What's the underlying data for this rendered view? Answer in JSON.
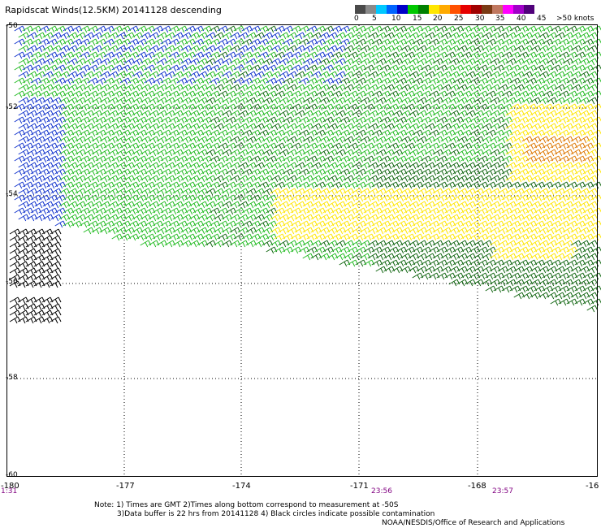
{
  "title": "Rapidscat Winds(12.5KM) 20141128 descending",
  "legend": {
    "colors": [
      "#4a4a4a",
      "#8a8a8a",
      "#00c8ff",
      "#0064ff",
      "#0000c8",
      "#00c800",
      "#008000",
      "#ffe600",
      "#ffaa00",
      "#ff5000",
      "#e60000",
      "#a00000",
      "#7a3a14",
      "#c07860",
      "#ff00ff",
      "#a000c8",
      "#50007a"
    ],
    "labels": [
      "0",
      "5",
      "10",
      "15",
      "20",
      "25",
      "30",
      "35",
      "40",
      "45",
      ">50 knots"
    ],
    "speed_colors": {
      "lt15": "#1133cc",
      "15to20": "#22bb22",
      "20to25": "#116611",
      "25to30": "#ffe600",
      "gt30": "#dd7700"
    }
  },
  "lat_labels": [
    "-50",
    "-52",
    "-54",
    "-56",
    "-58",
    "-60"
  ],
  "lon_labels": [
    "-180",
    "-177",
    "-174",
    "-171",
    "-168",
    "-16"
  ],
  "time_labels": [
    "1:31",
    "23:56",
    "23:57"
  ],
  "notes": [
    "Note: 1) Times are GMT 2)Times along bottom correspond to measurement at -50S",
    "3)Data buffer is 22 hrs from 20141128 4) Black circles indicate possible contamination"
  ],
  "credit": "NOAA/NESDIS/Office of Research and Applications"
}
